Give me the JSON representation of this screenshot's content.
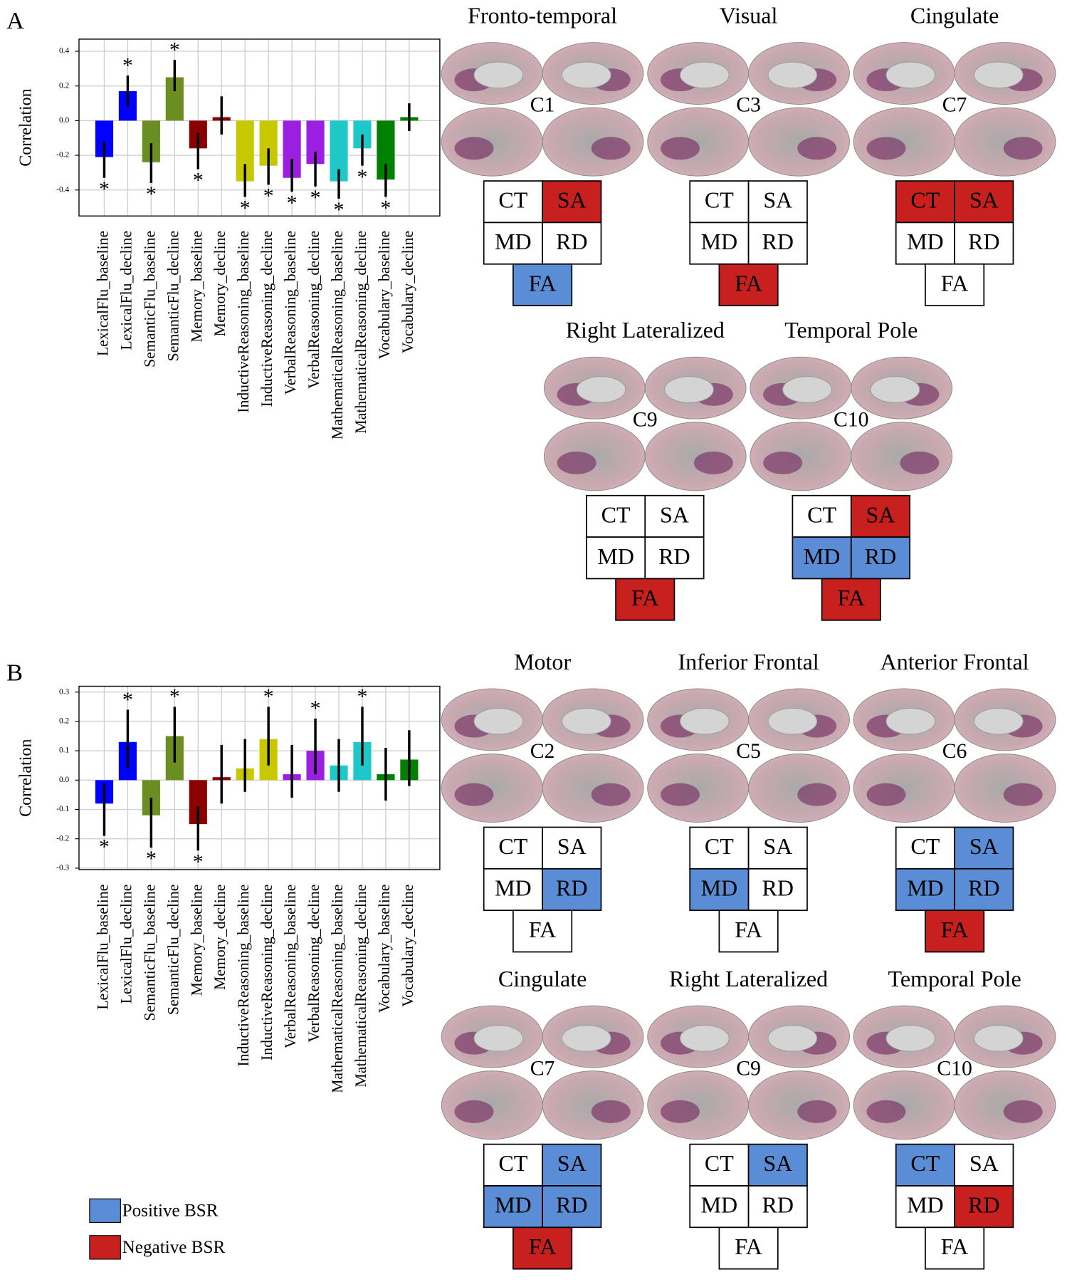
{
  "chart_data": [
    {
      "type": "bar",
      "y_label": "Correlation",
      "categories": [
        "LexicalFlu_baseline",
        "LexicalFlu_decline",
        "SemanticFlu_baseline",
        "SemanticFlu_decline",
        "Memory_baseline",
        "Memory_decline",
        "InductiveReasoning_baseline",
        "InductiveReasoning_decline",
        "VerbalReasoning_baseline",
        "VerbalReasoning_decline",
        "MathematicalReasoning_baseline",
        "MathematicalReasoning_decline",
        "Vocabulary_baseline",
        "Vocabulary_decline"
      ],
      "values": [
        -0.21,
        0.17,
        -0.24,
        0.25,
        -0.16,
        0.02,
        -0.35,
        -0.26,
        -0.33,
        -0.25,
        -0.35,
        -0.16,
        -0.34,
        0.02
      ],
      "ci_low": [
        -0.33,
        0.08,
        -0.36,
        0.17,
        -0.28,
        -0.08,
        -0.44,
        -0.37,
        -0.41,
        -0.38,
        -0.45,
        -0.26,
        -0.44,
        -0.06
      ],
      "ci_high": [
        -0.12,
        0.26,
        -0.13,
        0.35,
        -0.07,
        0.14,
        -0.25,
        -0.16,
        -0.22,
        -0.18,
        -0.28,
        -0.08,
        -0.25,
        0.1
      ],
      "significant": [
        true,
        true,
        true,
        true,
        true,
        false,
        true,
        true,
        true,
        true,
        true,
        true,
        true,
        false
      ],
      "significance_marker": "*",
      "colors": [
        "#0000ff",
        "#0000ff",
        "#6b8e23",
        "#6b8e23",
        "#8b0000",
        "#8b0000",
        "#c8c800",
        "#c8c800",
        "#9b1fe0",
        "#9b1fe0",
        "#1fc8c8",
        "#1fc8c8",
        "#008000",
        "#008000"
      ],
      "ylim": [
        -0.55,
        0.47
      ],
      "yticks": [
        0.4,
        0.2,
        {
          "value": 0,
          "label": "0.0"
        },
        -0.2,
        -0.4
      ],
      "grid": true
    },
    {
      "type": "bar",
      "y_label": "Correlation",
      "categories": [
        "LexicalFlu_baseline",
        "LexicalFlu_decline",
        "SemanticFlu_baseline",
        "SemanticFlu_decline",
        "Memory_baseline",
        "Memory_decline",
        "InductiveReasoning_baseline",
        "InductiveReasoning_decline",
        "VerbalReasoning_baseline",
        "VerbalReasoning_decline",
        "MathematicalReasoning_baseline",
        "MathematicalReasoning_decline",
        "Vocabulary_baseline",
        "Vocabulary_decline"
      ],
      "values": [
        -0.08,
        0.13,
        -0.12,
        0.15,
        -0.15,
        0.01,
        0.04,
        0.14,
        0.02,
        0.1,
        0.05,
        0.13,
        0.02,
        0.07
      ],
      "ci_low": [
        -0.19,
        0.04,
        -0.23,
        0.06,
        -0.24,
        -0.08,
        -0.04,
        0.05,
        -0.06,
        0.02,
        -0.04,
        0.05,
        -0.07,
        -0.02
      ],
      "ci_high": [
        -0.01,
        0.24,
        -0.06,
        0.25,
        -0.09,
        0.12,
        0.14,
        0.25,
        0.12,
        0.21,
        0.14,
        0.25,
        0.11,
        0.17
      ],
      "significant": [
        true,
        true,
        true,
        true,
        true,
        false,
        false,
        true,
        false,
        true,
        false,
        true,
        false,
        false
      ],
      "significance_marker": "*",
      "colors": [
        "#0000ff",
        "#0000ff",
        "#6b8e23",
        "#6b8e23",
        "#8b0000",
        "#8b0000",
        "#c8c800",
        "#c8c800",
        "#9b1fe0",
        "#9b1fe0",
        "#1fc8c8",
        "#1fc8c8",
        "#008000",
        "#008000"
      ],
      "ylim": [
        -0.305,
        0.32
      ],
      "yticks": [
        0.3,
        0.2,
        0.1,
        {
          "value": 0,
          "label": "0.0"
        },
        -0.1,
        -0.2,
        -0.3
      ],
      "grid": true
    }
  ],
  "panels": [
    {
      "label": "A",
      "components": [
        {
          "title": "Fronto-temporal",
          "label": "C1",
          "cells": [
            {
              "text": "CT",
              "color": null
            },
            {
              "text": "SA",
              "color": "#c8201f"
            },
            {
              "text": "MD",
              "color": null
            },
            {
              "text": "RD",
              "color": null
            },
            {
              "text": "FA",
              "color": "#5b8dd6"
            }
          ]
        },
        {
          "title": "Visual",
          "label": "C3",
          "cells": [
            {
              "text": "CT",
              "color": null
            },
            {
              "text": "SA",
              "color": null
            },
            {
              "text": "MD",
              "color": null
            },
            {
              "text": "RD",
              "color": null
            },
            {
              "text": "FA",
              "color": "#c8201f"
            }
          ]
        },
        {
          "title": "Cingulate",
          "label": "C7",
          "cells": [
            {
              "text": "CT",
              "color": "#c8201f"
            },
            {
              "text": "SA",
              "color": "#c8201f"
            },
            {
              "text": "MD",
              "color": null
            },
            {
              "text": "RD",
              "color": null
            },
            {
              "text": "FA",
              "color": null
            }
          ]
        },
        {
          "title": "Right Lateralized",
          "label": "C9",
          "cells": [
            {
              "text": "CT",
              "color": null
            },
            {
              "text": "SA",
              "color": null
            },
            {
              "text": "MD",
              "color": null
            },
            {
              "text": "RD",
              "color": null
            },
            {
              "text": "FA",
              "color": "#c8201f"
            }
          ]
        },
        {
          "title": "Temporal Pole",
          "label": "C10",
          "cells": [
            {
              "text": "CT",
              "color": null
            },
            {
              "text": "SA",
              "color": "#c8201f"
            },
            {
              "text": "MD",
              "color": "#5b8dd6"
            },
            {
              "text": "RD",
              "color": "#5b8dd6"
            },
            {
              "text": "FA",
              "color": "#c8201f"
            }
          ]
        }
      ]
    },
    {
      "label": "B",
      "components": [
        {
          "title": "Motor",
          "label": "C2",
          "cells": [
            {
              "text": "CT",
              "color": null
            },
            {
              "text": "SA",
              "color": null
            },
            {
              "text": "MD",
              "color": null
            },
            {
              "text": "RD",
              "color": "#5b8dd6"
            },
            {
              "text": "FA",
              "color": null
            }
          ]
        },
        {
          "title": "Inferior Frontal",
          "label": "C5",
          "cells": [
            {
              "text": "CT",
              "color": null
            },
            {
              "text": "SA",
              "color": null
            },
            {
              "text": "MD",
              "color": "#5b8dd6"
            },
            {
              "text": "RD",
              "color": null
            },
            {
              "text": "FA",
              "color": null
            }
          ]
        },
        {
          "title": "Anterior Frontal",
          "label": "C6",
          "cells": [
            {
              "text": "CT",
              "color": null
            },
            {
              "text": "SA",
              "color": "#5b8dd6"
            },
            {
              "text": "MD",
              "color": "#5b8dd6"
            },
            {
              "text": "RD",
              "color": "#5b8dd6"
            },
            {
              "text": "FA",
              "color": "#c8201f"
            }
          ]
        },
        {
          "title": "Cingulate",
          "label": "C7",
          "cells": [
            {
              "text": "CT",
              "color": null
            },
            {
              "text": "SA",
              "color": "#5b8dd6"
            },
            {
              "text": "MD",
              "color": "#5b8dd6"
            },
            {
              "text": "RD",
              "color": "#5b8dd6"
            },
            {
              "text": "FA",
              "color": "#c8201f"
            }
          ]
        },
        {
          "title": "Right Lateralized",
          "label": "C9",
          "cells": [
            {
              "text": "CT",
              "color": null
            },
            {
              "text": "SA",
              "color": "#5b8dd6"
            },
            {
              "text": "MD",
              "color": null
            },
            {
              "text": "RD",
              "color": null
            },
            {
              "text": "FA",
              "color": null
            }
          ]
        },
        {
          "title": "Temporal Pole",
          "label": "C10",
          "cells": [
            {
              "text": "CT",
              "color": "#5b8dd6"
            },
            {
              "text": "SA",
              "color": null
            },
            {
              "text": "MD",
              "color": null
            },
            {
              "text": "RD",
              "color": "#c8201f"
            },
            {
              "text": "FA",
              "color": null
            }
          ]
        }
      ]
    }
  ],
  "legend": {
    "items": [
      {
        "text": "Positive BSR",
        "color": "#5b8dd6"
      },
      {
        "text": "Negative BSR",
        "color": "#c8201f"
      }
    ]
  }
}
